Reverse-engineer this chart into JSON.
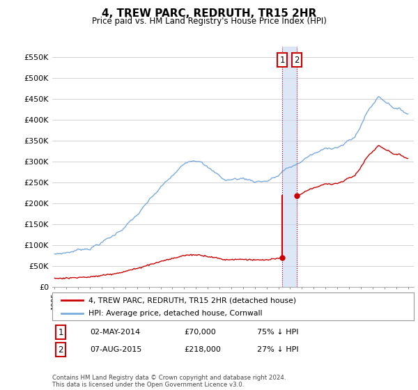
{
  "title": "4, TREW PARC, REDRUTH, TR15 2HR",
  "subtitle": "Price paid vs. HM Land Registry's House Price Index (HPI)",
  "ylabel_ticks": [
    "£0",
    "£50K",
    "£100K",
    "£150K",
    "£200K",
    "£250K",
    "£300K",
    "£350K",
    "£400K",
    "£450K",
    "£500K",
    "£550K"
  ],
  "ytick_values": [
    0,
    50000,
    100000,
    150000,
    200000,
    250000,
    300000,
    350000,
    400000,
    450000,
    500000,
    550000
  ],
  "ylim": [
    0,
    575000
  ],
  "xlim_start": 1994.8,
  "xlim_end": 2025.5,
  "t1_x": 2014.33,
  "t1_y": 70000,
  "t2_x": 2015.58,
  "t2_y": 218000,
  "legend_line1": "4, TREW PARC, REDRUTH, TR15 2HR (detached house)",
  "legend_line2": "HPI: Average price, detached house, Cornwall",
  "footer": "Contains HM Land Registry data © Crown copyright and database right 2024.\nThis data is licensed under the Open Government Licence v3.0.",
  "red_color": "#cc0000",
  "blue_color": "#7aabde",
  "band_color": "#c8d8f0",
  "vline_color": "#cc0000",
  "background_color": "#ffffff",
  "grid_color": "#cccccc",
  "table_row1": [
    "1",
    "02-MAY-2014",
    "£70,000",
    "75% ↓ HPI"
  ],
  "table_row2": [
    "2",
    "07-AUG-2015",
    "£218,000",
    "27% ↓ HPI"
  ]
}
